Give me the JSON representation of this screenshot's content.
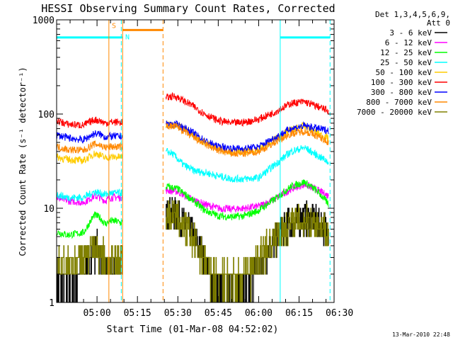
{
  "chart_data": {
    "type": "line",
    "title": "HESSI Observing Summary Count Rates, Corrected",
    "xlabel": "Start Time (01-Mar-08 04:52:02)",
    "ylabel": "Corrected Count Rate (s⁻¹ detector⁻¹)",
    "ylog": true,
    "ylim": [
      1,
      1000
    ],
    "xlim_minutes": [
      285,
      388
    ],
    "x_ticks": [
      {
        "label": "05:00",
        "minute": 300
      },
      {
        "label": "05:15",
        "minute": 315
      },
      {
        "label": "05:30",
        "minute": 330
      },
      {
        "label": "05:45",
        "minute": 345
      },
      {
        "label": "06:00",
        "minute": 360
      },
      {
        "label": "06:15",
        "minute": 375
      },
      {
        "label": "06:30",
        "minute": 390
      }
    ],
    "y_ticks": [
      {
        "label": "1",
        "value": 1
      },
      {
        "label": "10",
        "value": 10
      },
      {
        "label": "100",
        "value": 100
      },
      {
        "label": "1000",
        "value": 1000
      }
    ],
    "legend_header": [
      "Det 1,3,4,5,6,9,",
      "Att 0"
    ],
    "legend_position": "right",
    "series": [
      {
        "name": "3 - 6 keV",
        "color": "#000000",
        "points": [
          [
            285,
            1.8
          ],
          [
            290,
            1.3
          ],
          [
            296,
            2.5
          ],
          [
            299,
            3.5
          ],
          [
            300,
            3.8
          ],
          [
            302,
            3.0
          ],
          [
            305,
            2.0
          ],
          [
            307,
            2.5
          ],
          [
            309,
            3.0
          ],
          [
            326,
            9.0
          ],
          [
            330,
            8.5
          ],
          [
            335,
            5.5
          ],
          [
            340,
            3.0
          ],
          [
            343,
            1.6
          ],
          [
            348,
            1.3
          ],
          [
            354,
            1.3
          ],
          [
            358,
            1.9
          ],
          [
            362,
            3.2
          ],
          [
            367,
            5.0
          ],
          [
            372,
            7.2
          ],
          [
            378,
            8.0
          ],
          [
            382,
            7.0
          ],
          [
            386,
            6.0
          ]
        ]
      },
      {
        "name": "6 - 12 keV",
        "color": "#ff00ff",
        "points": [
          [
            285,
            13
          ],
          [
            289,
            12
          ],
          [
            295,
            11.5
          ],
          [
            299,
            13.5
          ],
          [
            301,
            13
          ],
          [
            303,
            12
          ],
          [
            305,
            13
          ],
          [
            307,
            13
          ],
          [
            309,
            13
          ],
          [
            326,
            15.5
          ],
          [
            330,
            15
          ],
          [
            335,
            12.5
          ],
          [
            340,
            11
          ],
          [
            345,
            10
          ],
          [
            350,
            9.8
          ],
          [
            355,
            10
          ],
          [
            360,
            10.5
          ],
          [
            366,
            12.5
          ],
          [
            372,
            16
          ],
          [
            377,
            18
          ],
          [
            382,
            15.5
          ],
          [
            386,
            13.5
          ]
        ]
      },
      {
        "name": "12 - 25 keV",
        "color": "#00ff00",
        "points": [
          [
            285,
            5.6
          ],
          [
            289,
            5.2
          ],
          [
            295,
            5.5
          ],
          [
            299,
            8.5
          ],
          [
            301,
            8.0
          ],
          [
            303,
            6.8
          ],
          [
            305,
            7.3
          ],
          [
            307,
            7.3
          ],
          [
            309,
            7.0
          ],
          [
            326,
            17
          ],
          [
            330,
            16
          ],
          [
            335,
            12.5
          ],
          [
            340,
            9.5
          ],
          [
            345,
            8.3
          ],
          [
            350,
            8.1
          ],
          [
            355,
            8.3
          ],
          [
            360,
            9.5
          ],
          [
            366,
            12.5
          ],
          [
            372,
            17
          ],
          [
            377,
            19
          ],
          [
            382,
            15
          ],
          [
            386,
            11
          ]
        ]
      },
      {
        "name": "25 - 50 keV",
        "color": "#00ffff",
        "points": [
          [
            285,
            14
          ],
          [
            289,
            13
          ],
          [
            295,
            13
          ],
          [
            299,
            15
          ],
          [
            301,
            14.5
          ],
          [
            303,
            14
          ],
          [
            305,
            14.5
          ],
          [
            307,
            14.5
          ],
          [
            309,
            14.5
          ],
          [
            326,
            40
          ],
          [
            328,
            38
          ],
          [
            332,
            29
          ],
          [
            336,
            25
          ],
          [
            340,
            24
          ],
          [
            345,
            22
          ],
          [
            350,
            20.5
          ],
          [
            355,
            20.5
          ],
          [
            360,
            21
          ],
          [
            366,
            29
          ],
          [
            372,
            40
          ],
          [
            377,
            44
          ],
          [
            382,
            36
          ],
          [
            386,
            31
          ]
        ]
      },
      {
        "name": "50 - 100 keV",
        "color": "#ffcc00",
        "points": [
          [
            285,
            35
          ],
          [
            289,
            33
          ],
          [
            295,
            32
          ],
          [
            299,
            38
          ],
          [
            301,
            37
          ],
          [
            303,
            34
          ],
          [
            305,
            35
          ],
          [
            307,
            35
          ],
          [
            309,
            35
          ],
          [
            326,
            78
          ],
          [
            330,
            76
          ],
          [
            335,
            62
          ],
          [
            340,
            50
          ],
          [
            345,
            43
          ],
          [
            350,
            40
          ],
          [
            355,
            40
          ],
          [
            360,
            42
          ],
          [
            366,
            54
          ],
          [
            372,
            68
          ],
          [
            377,
            75
          ],
          [
            382,
            62
          ],
          [
            386,
            55
          ]
        ]
      },
      {
        "name": "100 - 300 keV",
        "color": "#ff0000",
        "points": [
          [
            285,
            85
          ],
          [
            289,
            78
          ],
          [
            295,
            76
          ],
          [
            299,
            87
          ],
          [
            301,
            85
          ],
          [
            303,
            80
          ],
          [
            305,
            82
          ],
          [
            307,
            82
          ],
          [
            309,
            82
          ],
          [
            326,
            150
          ],
          [
            329,
            155
          ],
          [
            335,
            125
          ],
          [
            340,
            100
          ],
          [
            345,
            85
          ],
          [
            350,
            80
          ],
          [
            355,
            82
          ],
          [
            360,
            88
          ],
          [
            366,
            105
          ],
          [
            372,
            130
          ],
          [
            377,
            135
          ],
          [
            382,
            120
          ],
          [
            386,
            108
          ]
        ]
      },
      {
        "name": "300 - 800 keV",
        "color": "#0000ff",
        "points": [
          [
            285,
            60
          ],
          [
            289,
            56
          ],
          [
            295,
            53
          ],
          [
            299,
            62
          ],
          [
            301,
            61
          ],
          [
            303,
            57
          ],
          [
            305,
            58
          ],
          [
            307,
            58
          ],
          [
            309,
            58
          ],
          [
            326,
            78
          ],
          [
            330,
            77
          ],
          [
            335,
            65
          ],
          [
            340,
            52
          ],
          [
            345,
            45
          ],
          [
            350,
            43
          ],
          [
            355,
            43
          ],
          [
            360,
            45
          ],
          [
            366,
            56
          ],
          [
            372,
            70
          ],
          [
            377,
            75
          ],
          [
            382,
            70
          ],
          [
            386,
            67
          ]
        ]
      },
      {
        "name": "800 - 7000 keV",
        "color": "#ff8800",
        "points": [
          [
            285,
            45
          ],
          [
            289,
            42
          ],
          [
            295,
            41
          ],
          [
            299,
            48
          ],
          [
            301,
            47
          ],
          [
            303,
            44
          ],
          [
            305,
            45
          ],
          [
            307,
            45
          ],
          [
            309,
            45
          ],
          [
            326,
            75
          ],
          [
            330,
            73
          ],
          [
            335,
            58
          ],
          [
            340,
            48
          ],
          [
            345,
            41
          ],
          [
            350,
            38
          ],
          [
            355,
            38
          ],
          [
            360,
            40
          ],
          [
            366,
            50
          ],
          [
            372,
            62
          ],
          [
            377,
            66
          ],
          [
            382,
            58
          ],
          [
            386,
            50
          ]
        ]
      },
      {
        "name": "7000 - 20000 keV",
        "color": "#808000",
        "points": [
          [
            285,
            2.7
          ],
          [
            290,
            2.3
          ],
          [
            296,
            3.0
          ],
          [
            299,
            3.8
          ],
          [
            301,
            3.6
          ],
          [
            303,
            3.0
          ],
          [
            305,
            2.7
          ],
          [
            307,
            2.8
          ],
          [
            309,
            3.0
          ],
          [
            326,
            8.5
          ],
          [
            330,
            8.0
          ],
          [
            335,
            5.0
          ],
          [
            340,
            2.9
          ],
          [
            343,
            2.0
          ],
          [
            348,
            1.9
          ],
          [
            354,
            1.9
          ],
          [
            358,
            2.3
          ],
          [
            362,
            3.5
          ],
          [
            367,
            5.2
          ],
          [
            372,
            7.0
          ],
          [
            378,
            7.5
          ],
          [
            382,
            6.8
          ],
          [
            386,
            5.8
          ]
        ]
      }
    ],
    "gaps_minutes": [
      [
        309.5,
        325.5
      ]
    ],
    "annotations": [
      {
        "type": "bar",
        "color": "#00ffff",
        "y": 650,
        "x": [
          285,
          309.5
        ]
      },
      {
        "type": "bar",
        "color": "#ff8800",
        "y": 780,
        "x": [
          309.5,
          324.5
        ]
      },
      {
        "type": "bar",
        "color": "#00ffff",
        "y": 650,
        "x": [
          368,
          386.5
        ]
      },
      {
        "type": "vline",
        "color": "#00ffff",
        "x": 368,
        "dashed": false
      },
      {
        "type": "vline",
        "color": "#00ffff",
        "x": 386.5,
        "dashed": true
      },
      {
        "type": "vline",
        "color": "#00ffff",
        "x": 309,
        "dashed": true
      },
      {
        "type": "vline",
        "color": "#ff8800",
        "x": 304.4,
        "dashed": false
      },
      {
        "type": "vline",
        "color": "#ff8800",
        "x": 309.5,
        "dashed": false
      },
      {
        "type": "vline",
        "color": "#ff8800",
        "x": 324.5,
        "dashed": true
      },
      {
        "type": "label",
        "color": "#ff8800",
        "text": "S",
        "x": 305.5,
        "y": 820
      },
      {
        "type": "label",
        "color": "#00ffff",
        "text": "N",
        "x": 310.5,
        "y": 620
      }
    ],
    "footer_date": "13-Mar-2010 22:48"
  }
}
